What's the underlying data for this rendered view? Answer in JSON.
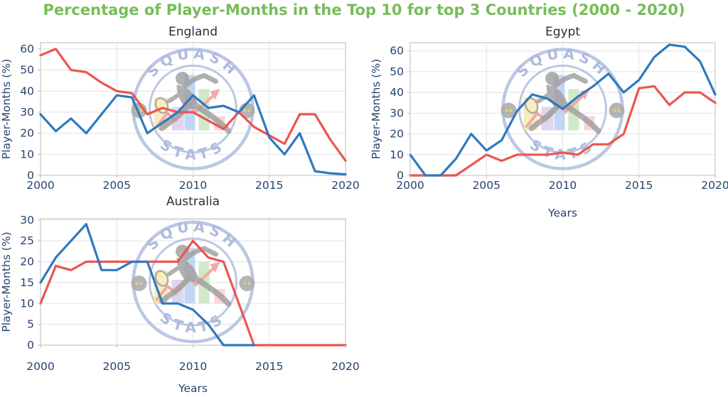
{
  "title": "Percentage of Player-Months in the Top 10 for top 3 Countries (2000 - 2020)",
  "colors": {
    "title_green": "#76BD58",
    "axis_text": "#25446E",
    "subplot_title": "#2E2E2E",
    "grid": "#E2E2E6",
    "plot_border": "#C6C6C6",
    "background": "#FFFFFF",
    "red_line": "#EB5551",
    "blue_line": "#2F79BE",
    "watermark_ring": "#B8C5E2",
    "watermark_text": "#A9B9DB",
    "watermark_player": "#9A9A9A"
  },
  "watermark": {
    "top_text": "SQUASH",
    "bottom_text": "STATS"
  },
  "chart_data": [
    {
      "type": "line",
      "title": "England",
      "ylabel": "Player-Months (%)",
      "xlabel": "",
      "x": [
        2000,
        2001,
        2002,
        2003,
        2004,
        2005,
        2006,
        2007,
        2008,
        2009,
        2010,
        2011,
        2012,
        2013,
        2014,
        2015,
        2016,
        2017,
        2018,
        2019,
        2020
      ],
      "xticks": [
        2000,
        2005,
        2010,
        2015,
        2020
      ],
      "yticks": [
        0,
        10,
        20,
        30,
        40,
        50,
        60
      ],
      "ylim": [
        0,
        63
      ],
      "xlim": [
        2000,
        2020
      ],
      "grid": true,
      "legend": false,
      "series": [
        {
          "name": "red-line",
          "color": "#EB5551",
          "values": [
            57,
            60,
            50,
            49,
            44,
            40,
            39,
            29,
            32,
            30,
            30,
            26,
            22,
            30,
            23,
            19,
            15,
            29,
            29,
            17,
            7
          ]
        },
        {
          "name": "blue-line",
          "color": "#2F79BE",
          "values": [
            29,
            21,
            27,
            20,
            29,
            38,
            37,
            20,
            25,
            30,
            38,
            32,
            33,
            30,
            38,
            18,
            10,
            20,
            2,
            1,
            0.5
          ]
        }
      ]
    },
    {
      "type": "line",
      "title": "Egypt",
      "ylabel": "Player-Months (%)",
      "xlabel": "Years",
      "x": [
        2000,
        2001,
        2002,
        2003,
        2004,
        2005,
        2006,
        2007,
        2008,
        2009,
        2010,
        2011,
        2012,
        2013,
        2014,
        2015,
        2016,
        2017,
        2018,
        2019,
        2020
      ],
      "xticks": [
        2000,
        2005,
        2010,
        2015,
        2020
      ],
      "yticks": [
        0,
        10,
        20,
        30,
        40,
        50,
        60
      ],
      "ylim": [
        0,
        64
      ],
      "xlim": [
        2000,
        2020
      ],
      "grid": true,
      "legend": false,
      "series": [
        {
          "name": "red-line",
          "color": "#EB5551",
          "values": [
            0,
            0,
            0,
            0,
            5,
            10,
            7,
            10,
            10,
            10,
            11,
            10,
            15,
            15,
            20,
            42,
            43,
            34,
            40,
            40,
            35
          ]
        },
        {
          "name": "blue-line",
          "color": "#2F79BE",
          "values": [
            10,
            0,
            0,
            8,
            20,
            12,
            17,
            31,
            39,
            37,
            32,
            38,
            43,
            49,
            40,
            46,
            57,
            63,
            62,
            55,
            39
          ]
        }
      ]
    },
    {
      "type": "line",
      "title": "Australia",
      "ylabel": "Player-Months (%)",
      "xlabel": "Years",
      "x": [
        2000,
        2001,
        2002,
        2003,
        2004,
        2005,
        2006,
        2007,
        2008,
        2009,
        2010,
        2011,
        2012,
        2013,
        2014,
        2015,
        2016,
        2017,
        2018,
        2019,
        2020
      ],
      "xticks": [
        2000,
        2005,
        2010,
        2015,
        2020
      ],
      "yticks": [
        0,
        5,
        10,
        15,
        20,
        25,
        30
      ],
      "ylim": [
        0,
        30.3
      ],
      "xlim": [
        2000,
        2020
      ],
      "grid": true,
      "legend": false,
      "series": [
        {
          "name": "red-line",
          "color": "#EB5551",
          "values": [
            10,
            19,
            18,
            20,
            20,
            20,
            20,
            20,
            20,
            20,
            25,
            21,
            20,
            10,
            0,
            0,
            0,
            0,
            0,
            0,
            0
          ]
        },
        {
          "name": "blue-line",
          "color": "#2F79BE",
          "values": [
            15,
            21,
            25,
            29,
            18,
            18,
            20,
            20,
            10,
            10,
            8.5,
            5,
            0,
            0,
            0,
            null,
            null,
            null,
            null,
            null,
            null
          ]
        }
      ]
    }
  ]
}
